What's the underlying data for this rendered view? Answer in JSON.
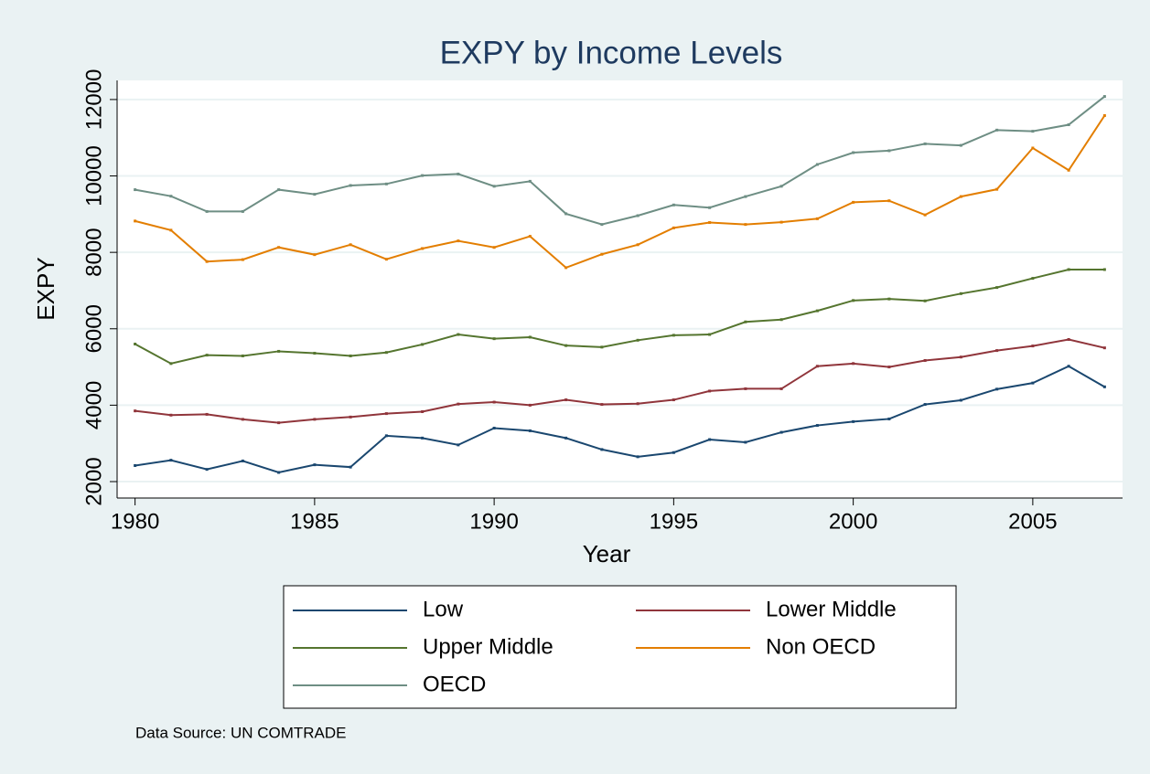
{
  "chart_data": {
    "type": "line",
    "title": "EXPY by Income Levels",
    "x_label": "Year",
    "y_label": "EXPY",
    "note": "Data Source: UN COMTRADE",
    "x": [
      1980,
      1981,
      1982,
      1983,
      1984,
      1985,
      1986,
      1987,
      1988,
      1989,
      1990,
      1991,
      1992,
      1993,
      1994,
      1995,
      1996,
      1997,
      1998,
      1999,
      2000,
      2001,
      2002,
      2003,
      2004,
      2005,
      2006,
      2007
    ],
    "xlim": [
      1979.5,
      2007.5
    ],
    "xticks": [
      1980,
      1985,
      1990,
      1995,
      2000,
      2005
    ],
    "ylim": [
      1570,
      12500
    ],
    "yticks": [
      2000,
      4000,
      6000,
      8000,
      10000,
      12000
    ],
    "grid": true,
    "legend": "bottom",
    "series": [
      {
        "name": "Low",
        "color": "#1a476f",
        "values": [
          2420,
          2560,
          2320,
          2540,
          2240,
          2440,
          2380,
          3200,
          3140,
          2960,
          3400,
          3330,
          3140,
          2840,
          2650,
          2760,
          3100,
          3030,
          3290,
          3470,
          3570,
          3640,
          4020,
          4130,
          4420,
          4580,
          5020,
          4480
        ]
      },
      {
        "name": "Lower Middle",
        "color": "#90353b",
        "values": [
          3850,
          3740,
          3760,
          3630,
          3540,
          3630,
          3690,
          3780,
          3830,
          4030,
          4080,
          4000,
          4140,
          4020,
          4040,
          4140,
          4370,
          4430,
          4430,
          5020,
          5090,
          5000,
          5170,
          5260,
          5430,
          5550,
          5720,
          5500
        ]
      },
      {
        "name": "Upper Middle",
        "color": "#55752f",
        "values": [
          5600,
          5090,
          5310,
          5290,
          5410,
          5360,
          5290,
          5380,
          5590,
          5850,
          5740,
          5780,
          5560,
          5520,
          5700,
          5830,
          5850,
          6180,
          6240,
          6470,
          6740,
          6780,
          6730,
          6920,
          7080,
          7320,
          7550,
          7550
        ]
      },
      {
        "name": "Non OECD",
        "color": "#e37e00",
        "values": [
          8820,
          8580,
          7760,
          7810,
          8130,
          7940,
          8200,
          7820,
          8100,
          8300,
          8130,
          8420,
          7600,
          7950,
          8200,
          8640,
          8780,
          8730,
          8790,
          8880,
          9310,
          9350,
          8980,
          9460,
          9650,
          10730,
          10150,
          11580
        ]
      },
      {
        "name": "OECD",
        "color": "#6e8e84",
        "values": [
          9640,
          9470,
          9070,
          9070,
          9640,
          9520,
          9750,
          9790,
          10010,
          10050,
          9730,
          9860,
          9010,
          8730,
          8960,
          9240,
          9170,
          9460,
          9730,
          10300,
          10610,
          10660,
          10840,
          10800,
          11200,
          11170,
          11340,
          12080
        ]
      }
    ]
  }
}
